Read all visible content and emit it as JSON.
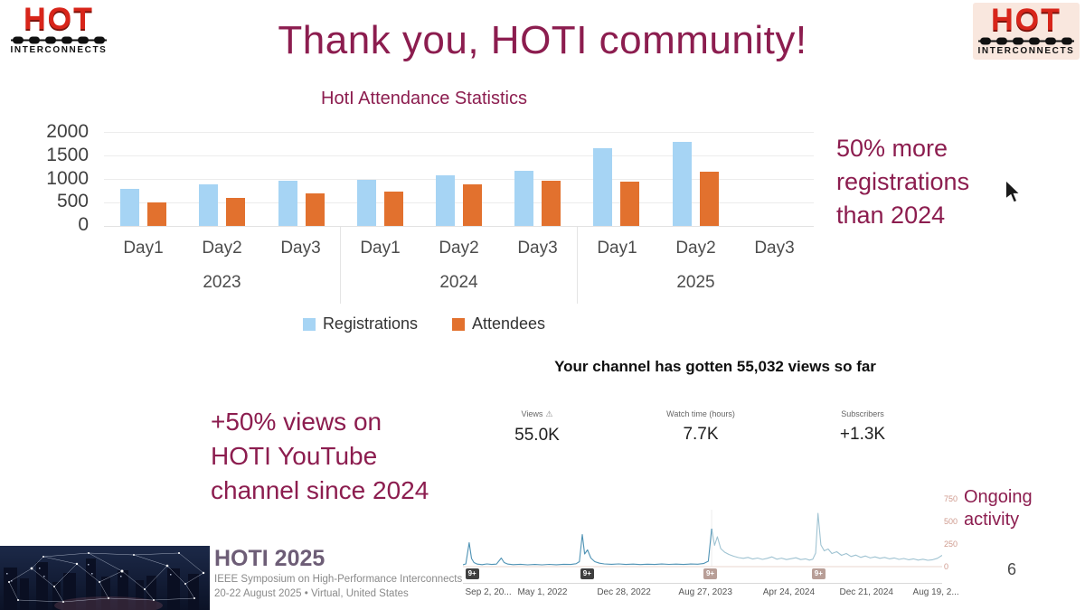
{
  "slide": {
    "title": "Thank you, HOTI community!",
    "page_number": "6"
  },
  "logo": {
    "word": "HOT",
    "subtitle": "INTERCONNECTS"
  },
  "colors": {
    "maroon": "#8c1d4f",
    "registrations_blue": "#a6d4f4",
    "attendees_orange": "#e2712e",
    "line_dark": "#4e92b4",
    "line_light": "#9fc3d2"
  },
  "callouts": {
    "registrations": {
      "line1": "50% more",
      "line2": "registrations",
      "line3": "than 2024"
    },
    "views": {
      "line1": "+50% views on",
      "line2": "HOTI YouTube",
      "line3": "channel since 2024"
    },
    "activity": {
      "line1": "Ongoing",
      "line2": "activity"
    }
  },
  "youtube": {
    "headline": "Your channel has gotten 55,032 views so far",
    "stats": [
      {
        "label": "Views",
        "glyph": "⚠",
        "value": "55.0K"
      },
      {
        "label": "Watch time (hours)",
        "value": "7.7K"
      },
      {
        "label": "Subscribers",
        "value": "+1.3K"
      }
    ]
  },
  "footer": {
    "title": "HOTI 2025",
    "line1": "IEEE Symposium on High-Performance Interconnects",
    "line2": "20-22 August 2025 • Virtual, United States"
  },
  "chart_data": [
    {
      "type": "bar",
      "title": "HotI Attendance Statistics",
      "group_labels": [
        "2023",
        "2024",
        "2025"
      ],
      "categories": [
        "Day1",
        "Day2",
        "Day3",
        "Day1",
        "Day2",
        "Day3",
        "Day1",
        "Day2",
        "Day3"
      ],
      "series": [
        {
          "name": "Registrations",
          "color": "#a6d4f4",
          "values": [
            780,
            880,
            970,
            980,
            1080,
            1180,
            1660,
            1790,
            null
          ]
        },
        {
          "name": "Attendees",
          "color": "#e2712e",
          "values": [
            500,
            590,
            700,
            730,
            880,
            960,
            950,
            1160,
            null
          ]
        }
      ],
      "ylim": [
        0,
        2000
      ],
      "yticks": [
        0,
        500,
        1000,
        1500,
        2000
      ],
      "grid": "horizontal",
      "legend_position": "bottom"
    },
    {
      "type": "line",
      "context": "YouTube channel daily views over time",
      "ylim": [
        0,
        800
      ],
      "yticks": [
        0,
        250,
        500,
        750
      ],
      "split_pct": 51.9,
      "colors": {
        "before": "#4e92b4",
        "after": "#9fc3d2"
      },
      "x_labels": [
        {
          "text": "Sep 2, 20...",
          "pct": 5.3
        },
        {
          "text": "May 1, 2022",
          "pct": 16.6
        },
        {
          "text": "Dec 28, 2022",
          "pct": 33.6
        },
        {
          "text": "Aug 27, 2023",
          "pct": 50.6
        },
        {
          "text": "Apr 24, 2024",
          "pct": 68
        },
        {
          "text": "Dec 21, 2024",
          "pct": 84.2
        },
        {
          "text": "Aug 19, 2...",
          "pct": 98.7
        }
      ],
      "annotations": [
        {
          "x_pct": 0.5,
          "label": "9+",
          "tone": "dark"
        },
        {
          "x_pct": 24.5,
          "label": "9+",
          "tone": "dark"
        },
        {
          "x_pct": 50.2,
          "label": "9+",
          "tone": "light"
        },
        {
          "x_pct": 72.8,
          "label": "9+",
          "tone": "light"
        }
      ],
      "peaks": [
        {
          "near": "Sep 2021",
          "value": 270
        },
        {
          "near": "Sep 2022",
          "value": 350
        },
        {
          "near": "Aug 27, 2023",
          "value": 420
        },
        {
          "near": "Sep 2024",
          "value": 590
        }
      ],
      "points": [
        [
          0,
          20
        ],
        [
          0.6,
          30
        ],
        [
          1.3,
          265
        ],
        [
          1.8,
          90
        ],
        [
          2.3,
          45
        ],
        [
          3,
          28
        ],
        [
          4,
          22
        ],
        [
          5,
          30
        ],
        [
          6,
          24
        ],
        [
          7,
          28
        ],
        [
          8,
          95
        ],
        [
          8.6,
          45
        ],
        [
          9.4,
          28
        ],
        [
          10.5,
          22
        ],
        [
          12,
          26
        ],
        [
          13.5,
          20
        ],
        [
          15,
          24
        ],
        [
          16.5,
          20
        ],
        [
          18,
          25
        ],
        [
          19.5,
          21
        ],
        [
          21,
          26
        ],
        [
          22.5,
          24
        ],
        [
          23.6,
          32
        ],
        [
          24.3,
          55
        ],
        [
          24.9,
          355
        ],
        [
          25.4,
          140
        ],
        [
          26,
          185
        ],
        [
          26.7,
          95
        ],
        [
          27.5,
          55
        ],
        [
          28.5,
          38
        ],
        [
          29.5,
          30
        ],
        [
          31,
          26
        ],
        [
          32.5,
          30
        ],
        [
          34,
          24
        ],
        [
          35.5,
          28
        ],
        [
          37,
          23
        ],
        [
          38.5,
          27
        ],
        [
          40,
          24
        ],
        [
          41.5,
          29
        ],
        [
          43,
          25
        ],
        [
          44.5,
          28
        ],
        [
          46,
          24
        ],
        [
          47.5,
          29
        ],
        [
          49,
          27
        ],
        [
          50.2,
          34
        ],
        [
          51.2,
          60
        ],
        [
          51.9,
          420
        ],
        [
          52.5,
          235
        ],
        [
          53.1,
          330
        ],
        [
          53.8,
          200
        ],
        [
          54.6,
          160
        ],
        [
          55.5,
          135
        ],
        [
          56.5,
          115
        ],
        [
          57.5,
          100
        ],
        [
          58.5,
          92
        ],
        [
          59.5,
          102
        ],
        [
          60.5,
          84
        ],
        [
          61.5,
          95
        ],
        [
          62.5,
          80
        ],
        [
          63.5,
          92
        ],
        [
          64.5,
          108
        ],
        [
          65.5,
          82
        ],
        [
          66.5,
          94
        ],
        [
          67.5,
          78
        ],
        [
          68.5,
          88
        ],
        [
          69.5,
          98
        ],
        [
          70.5,
          78
        ],
        [
          71.5,
          86
        ],
        [
          72.3,
          72
        ],
        [
          73,
          82
        ],
        [
          73.6,
          150
        ],
        [
          74.1,
          590
        ],
        [
          74.7,
          240
        ],
        [
          75.4,
          175
        ],
        [
          76.2,
          195
        ],
        [
          77,
          145
        ],
        [
          78,
          165
        ],
        [
          79,
          125
        ],
        [
          80,
          145
        ],
        [
          81,
          112
        ],
        [
          82,
          128
        ],
        [
          83,
          102
        ],
        [
          84,
          118
        ],
        [
          85,
          96
        ],
        [
          86,
          108
        ],
        [
          87,
          92
        ],
        [
          88,
          102
        ],
        [
          89,
          86
        ],
        [
          90,
          96
        ],
        [
          91,
          80
        ],
        [
          92,
          90
        ],
        [
          93,
          76
        ],
        [
          94,
          86
        ],
        [
          95,
          72
        ],
        [
          96,
          82
        ],
        [
          97,
          70
        ],
        [
          98,
          76
        ],
        [
          99,
          92
        ],
        [
          100,
          125
        ]
      ]
    }
  ]
}
